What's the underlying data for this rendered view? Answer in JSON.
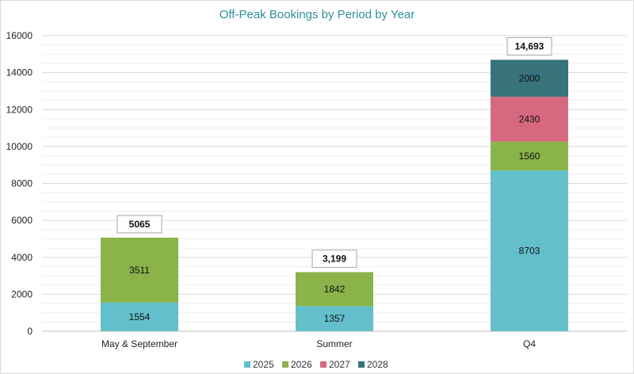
{
  "chart_data": {
    "type": "bar",
    "stacked": true,
    "title": "Off-Peak Bookings by Period by Year",
    "xlabel": "",
    "ylabel": "",
    "ylim": [
      0,
      16000
    ],
    "yticks": [
      "0",
      "2000",
      "4000",
      "6000",
      "8000",
      "10000",
      "12000",
      "14000",
      "16000"
    ],
    "grid": true,
    "legend_position": "bottom",
    "categories": [
      "May & September",
      "Summer",
      "Q4"
    ],
    "series": [
      {
        "name": "2025",
        "color": "#63bfcc",
        "values": [
          1554,
          1357,
          8703
        ]
      },
      {
        "name": "2026",
        "color": "#8ab34a",
        "values": [
          3511,
          1842,
          1560
        ]
      },
      {
        "name": "2027",
        "color": "#d6697f",
        "values": [
          null,
          null,
          2430
        ]
      },
      {
        "name": "2028",
        "color": "#38737c",
        "values": [
          null,
          null,
          2000
        ]
      }
    ],
    "segment_labels": [
      [
        "1554",
        "1357",
        "8703"
      ],
      [
        "3511",
        "1842",
        "1560"
      ],
      [
        "",
        "",
        "2430"
      ],
      [
        "",
        "",
        "2000"
      ]
    ],
    "totals": [
      5065,
      3199,
      14693
    ],
    "total_labels": [
      "5065",
      "3,199",
      "14,693"
    ],
    "colors": {
      "title": "#2f8f9b",
      "gridline": "#d9d9d9",
      "axis": "#bfbfbf"
    }
  }
}
